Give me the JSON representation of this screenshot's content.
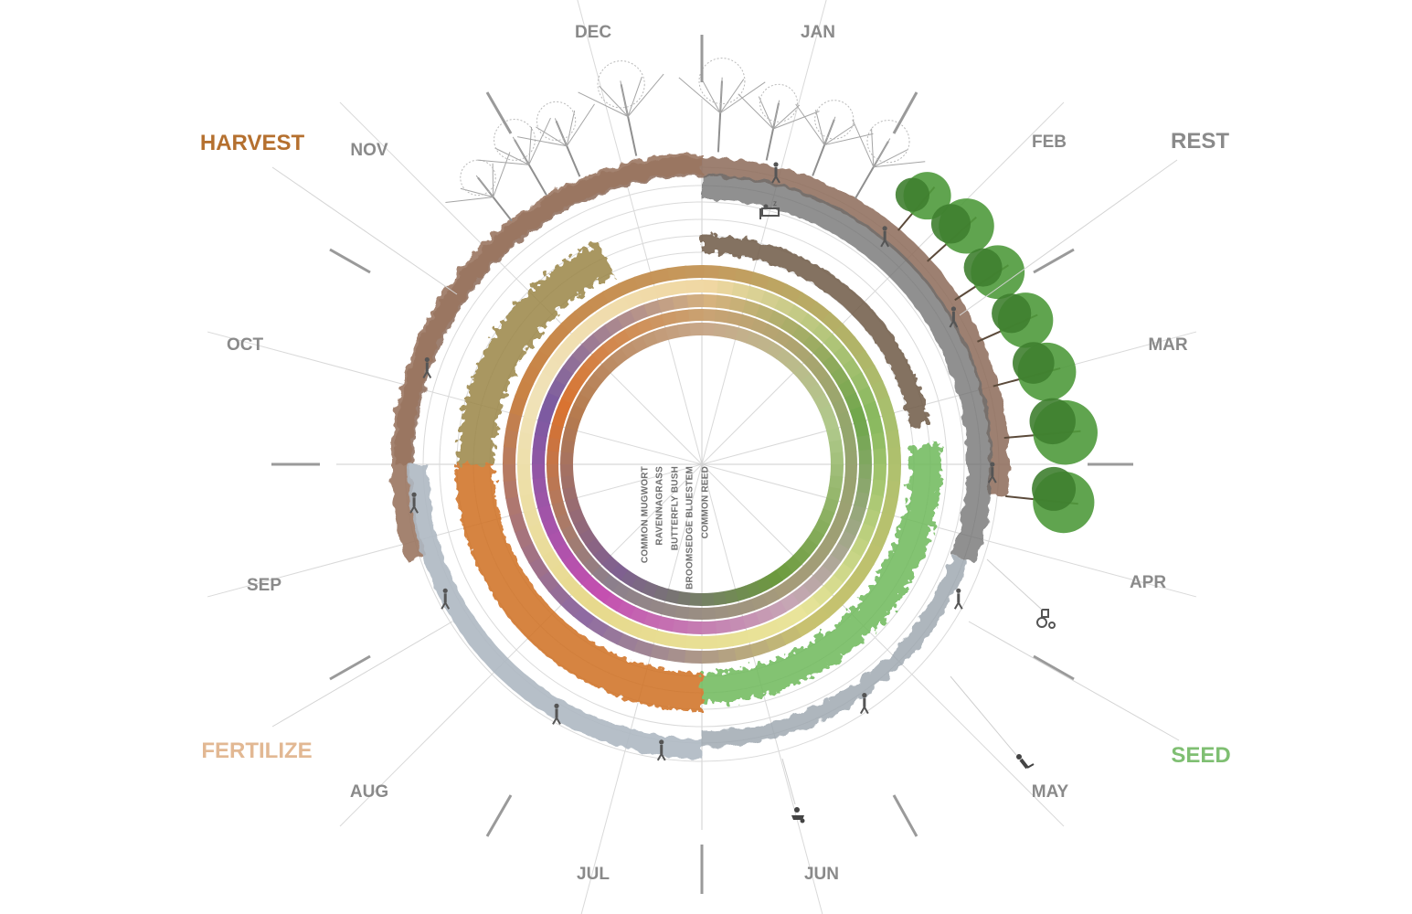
{
  "months": [
    {
      "key": "jan",
      "label": "JAN"
    },
    {
      "key": "feb",
      "label": "FEB"
    },
    {
      "key": "mar",
      "label": "MAR"
    },
    {
      "key": "apr",
      "label": "APR"
    },
    {
      "key": "may",
      "label": "MAY"
    },
    {
      "key": "jun",
      "label": "JUN"
    },
    {
      "key": "jul",
      "label": "JUL"
    },
    {
      "key": "aug",
      "label": "AUG"
    },
    {
      "key": "sep",
      "label": "SEP"
    },
    {
      "key": "oct",
      "label": "OCT"
    },
    {
      "key": "nov",
      "label": "NOV"
    },
    {
      "key": "dec",
      "label": "DEC"
    }
  ],
  "phases": [
    {
      "key": "rest",
      "label": "REST",
      "color": "#8a8a8a"
    },
    {
      "key": "seed",
      "label": "SEED",
      "color": "#7fbf72"
    },
    {
      "key": "fertilize",
      "label": "FERTILIZE",
      "color": "#e2b893"
    },
    {
      "key": "harvest",
      "label": "HARVEST",
      "color": "#b5702f"
    }
  ],
  "species": [
    {
      "key": "common-mugwort",
      "label": "COMMON MUGWORT",
      "colors": [
        "#c59a5e",
        "#a8c06d",
        "#c9c26f",
        "#8e6aa3",
        "#c98244",
        "#c59a5e"
      ]
    },
    {
      "key": "ravennagrass",
      "label": "RAVENNAGRASS",
      "colors": [
        "#f0d7a2",
        "#87b85d",
        "#e9e49a",
        "#e7d98d",
        "#f0e2b8",
        "#f0d7a2"
      ]
    },
    {
      "key": "butterfly-bush",
      "label": "BUTTERFLY BUSH",
      "colors": [
        "#d6b27e",
        "#6fa74c",
        "#c6a7b4",
        "#c44fb0",
        "#7a5aa0",
        "#d6b27e"
      ]
    },
    {
      "key": "broomsedge-bluestem",
      "label": "BROOMSEDGE BLUESTEM",
      "colors": [
        "#c9a374",
        "#93a66c",
        "#a69b7a",
        "#8c7f8c",
        "#d9722f",
        "#c9a374"
      ]
    },
    {
      "key": "common-reed",
      "label": "COMMON REED",
      "colors": [
        "#c8a98b",
        "#b0c98b",
        "#6c9a3e",
        "#7f5f91",
        "#b57a4d",
        "#c8a98b"
      ]
    }
  ],
  "colors": {
    "soil": "#8c6a57",
    "rock": "#6b6b6b",
    "frost": "#aeb8c2",
    "grass": "#6db85a",
    "golden-grass": "#9a8547",
    "orange-grass": "#cf6f22",
    "tree-green": "#4f9a3c",
    "bare-tree": "#a5a5a5"
  }
}
